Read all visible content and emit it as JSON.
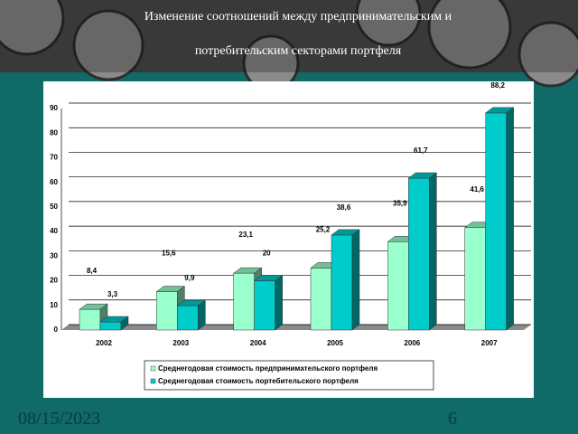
{
  "header": {
    "title": "Изменение соотношений между предпринимательским и потребительским секторами портфеля"
  },
  "chart_data": {
    "type": "bar3d",
    "categories": [
      "2002",
      "2003",
      "2004",
      "2005",
      "2006",
      "2007"
    ],
    "series": [
      {
        "name": "Среднегодовая стоимость предпринимательского портфеля",
        "color": "#99ffcc",
        "values": [
          8.4,
          15.6,
          23.1,
          25.2,
          35.9,
          41.6
        ],
        "value_labels": [
          "8,4",
          "15,6",
          "23,1",
          "25,2",
          "35,9",
          "41,6"
        ]
      },
      {
        "name": "Среднегодовая стоимость портебительского портфеля",
        "color": "#00cccc",
        "values": [
          3.3,
          9.9,
          20,
          38.6,
          61.7,
          88.2
        ],
        "value_labels": [
          "3,3",
          "9,9",
          "20",
          "38,6",
          "61,7",
          "88,2"
        ]
      }
    ],
    "ylim": [
      0,
      90
    ],
    "yticks": [
      0,
      10,
      20,
      30,
      40,
      50,
      60,
      70,
      80,
      90
    ],
    "grid": true
  },
  "footer": {
    "date": "08/15/2023",
    "page": "6"
  }
}
